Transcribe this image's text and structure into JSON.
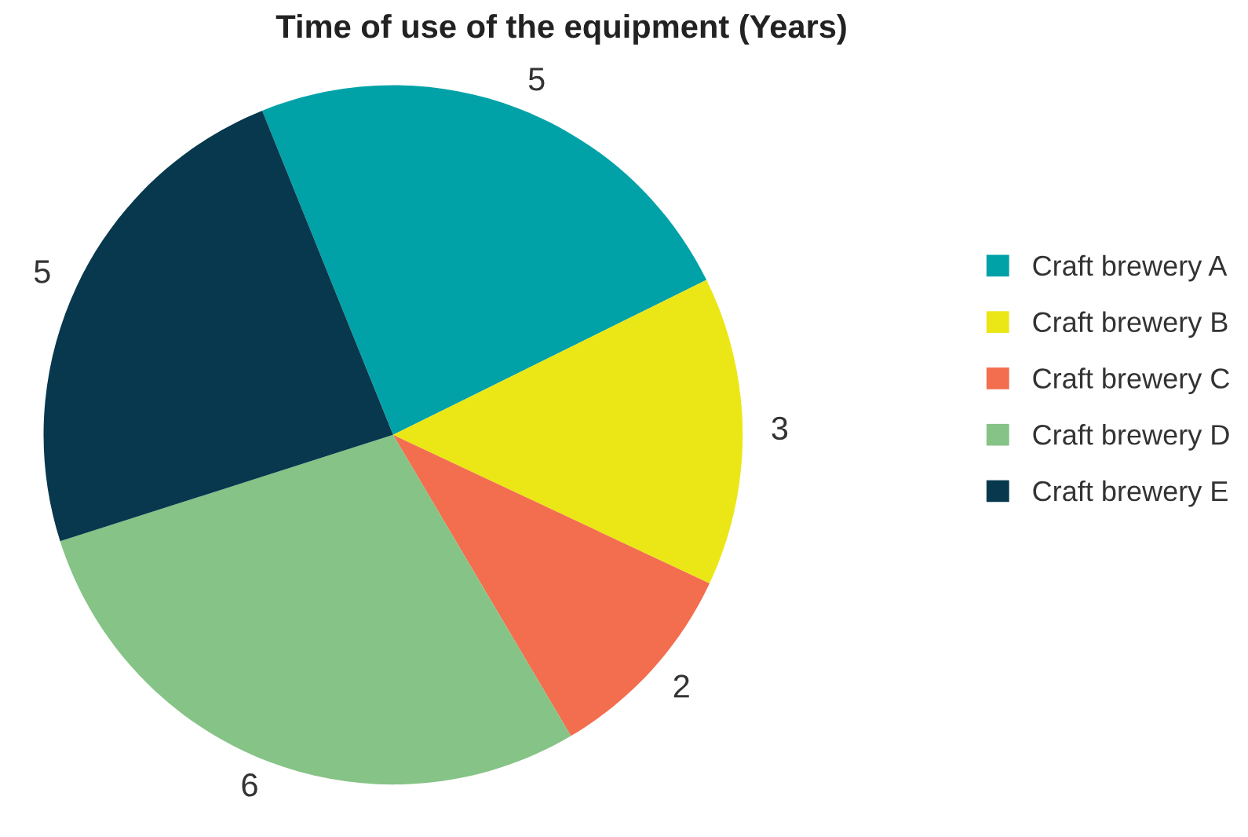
{
  "chart_data": {
    "type": "pie",
    "title": "Time of use of the equipment (Years)",
    "categories": [
      "Craft brewery A",
      "Craft brewery B",
      "Craft brewery C",
      "Craft brewery D",
      "Craft brewery E"
    ],
    "values": [
      5,
      3,
      2,
      6,
      5
    ],
    "colors": [
      "#00a2a8",
      "#ebe716",
      "#f26e4e",
      "#86c386",
      "#07384d"
    ],
    "data_labels": true,
    "legend": "right"
  }
}
